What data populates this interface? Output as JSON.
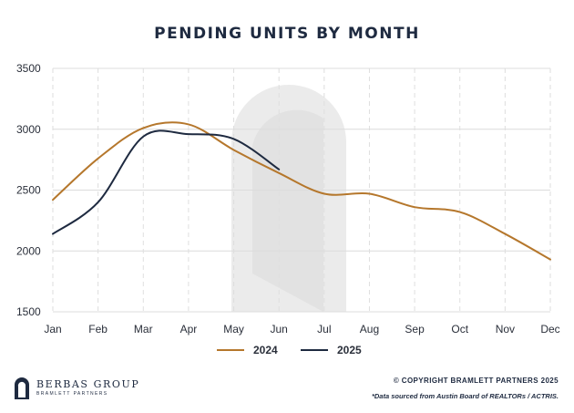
{
  "chart_data": {
    "type": "line",
    "title": "PENDING UNITS BY MONTH",
    "xlabel": "",
    "ylabel": "",
    "categories": [
      "Jan",
      "Feb",
      "Mar",
      "Apr",
      "May",
      "Jun",
      "Jul",
      "Aug",
      "Sep",
      "Oct",
      "Nov",
      "Dec"
    ],
    "ylim": [
      1500,
      3500
    ],
    "yticks": [
      1500,
      2000,
      2500,
      3000,
      3500
    ],
    "grid": "horizontal solid, vertical dashed",
    "legend_position": "bottom-center",
    "series": [
      {
        "name": "2024",
        "color": "#b5772c",
        "values": [
          2420,
          2760,
          3010,
          3040,
          2830,
          2640,
          2470,
          2470,
          2360,
          2320,
          2140,
          1930
        ]
      },
      {
        "name": "2025",
        "color": "#1e2a40",
        "values": [
          2140,
          2400,
          2940,
          2960,
          2920,
          2670,
          null,
          null,
          null,
          null,
          null,
          null
        ]
      }
    ]
  },
  "footer": {
    "logo_name": "BERBAS GROUP",
    "logo_sub": "BRAMLETT PARTNERS",
    "copyright": "© COPYRIGHT BRAMLETT PARTNERS 2025",
    "source": "*Data sourced from Austin Board of REALTORs / ACTRIS."
  }
}
